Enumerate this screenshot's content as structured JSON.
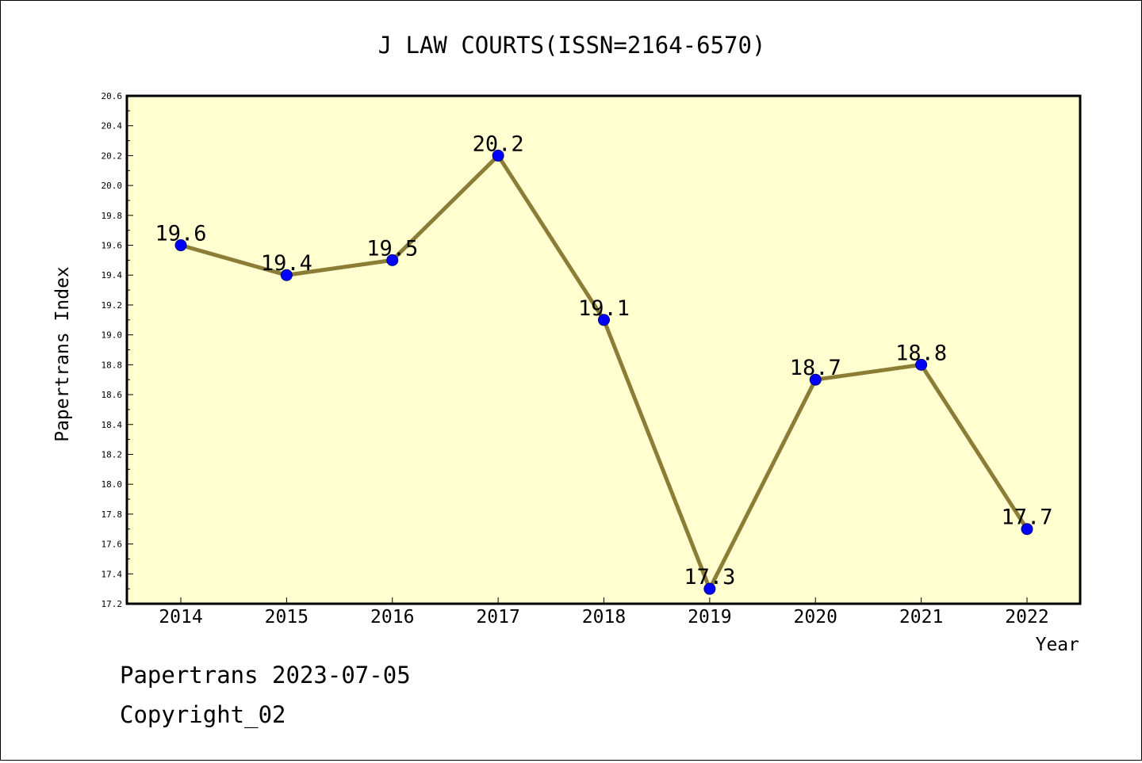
{
  "chart_data": {
    "type": "line",
    "title": "J LAW COURTS(ISSN=2164-6570)",
    "xlabel": "Year",
    "ylabel": "Papertrans Index",
    "categories": [
      "2014",
      "2015",
      "2016",
      "2017",
      "2018",
      "2019",
      "2020",
      "2021",
      "2022"
    ],
    "series": [
      {
        "values": [
          19.6,
          19.4,
          19.5,
          20.2,
          19.1,
          17.3,
          18.7,
          18.8,
          17.7
        ],
        "data_labels": [
          "19.6",
          "19.4",
          "19.5",
          "20.2",
          "19.1",
          "17.3",
          "18.7",
          "18.8",
          "17.7"
        ]
      }
    ],
    "ylim": [
      17.2,
      20.6
    ],
    "y_ticks": [
      "17.2",
      "17.4",
      "17.6",
      "17.8",
      "18.0",
      "18.2",
      "18.4",
      "18.6",
      "18.8",
      "19.0",
      "19.2",
      "19.4",
      "19.6",
      "19.8",
      "20.0",
      "20.2",
      "20.4",
      "20.6"
    ],
    "grid": false,
    "legend": "none"
  },
  "footer": {
    "line1": "Papertrans 2023-07-05",
    "line2": "Copyright_02"
  },
  "colors": {
    "plot_background": "#ffffd0",
    "line": "#8b7d35",
    "marker_fill": "#0000ff",
    "marker_edge": "#000080"
  }
}
